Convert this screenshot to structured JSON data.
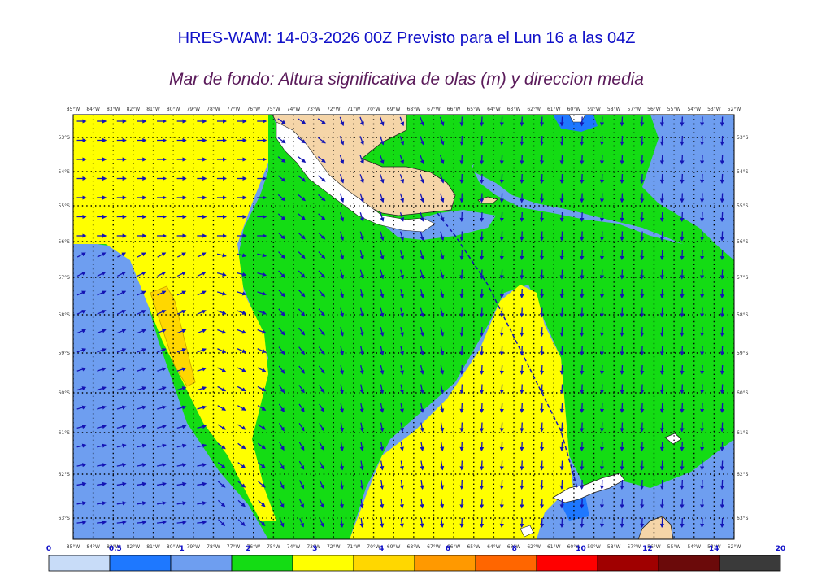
{
  "title": "HRES-WAM: 14-03-2026 00Z Previsto para el Lun 16 a las 04Z",
  "subtitle": "Mar de fondo: Altura significativa de olas (m) y direccion media",
  "lon_labels": [
    "85°W",
    "84°W",
    "83°W",
    "82°W",
    "81°W",
    "80°W",
    "79°W",
    "78°W",
    "77°W",
    "76°W",
    "75°W",
    "74°W",
    "73°W",
    "72°W",
    "71°W",
    "70°W",
    "69°W",
    "68°W",
    "67°W",
    "66°W",
    "65°W",
    "64°W",
    "63°W",
    "62°W",
    "61°W",
    "60°W",
    "59°W",
    "58°W",
    "57°W",
    "56°W",
    "55°W",
    "54°W",
    "53°W",
    "52°W"
  ],
  "lat_labels": [
    "53°S",
    "54°S",
    "55°S",
    "56°S",
    "57°S",
    "58°S",
    "59°S",
    "60°S",
    "61°S",
    "62°S",
    "63°S"
  ],
  "colorbar": {
    "labels": [
      "0",
      "0.5",
      "1",
      "2",
      "3",
      "4",
      "6",
      "8",
      "10",
      "12",
      "14",
      "20"
    ],
    "colors": [
      "#c8dcf8",
      "#1e78ff",
      "#6e9ef0",
      "#14dc14",
      "#ffff00",
      "#ffd700",
      "#ff9900",
      "#ff6600",
      "#ff0000",
      "#a00000",
      "#6b0a0a",
      "#3a3a3a"
    ]
  },
  "legend_colors": {
    "land": "#f5d5a8",
    "arrow": "#1414b4",
    "track": "#1414b4"
  }
}
